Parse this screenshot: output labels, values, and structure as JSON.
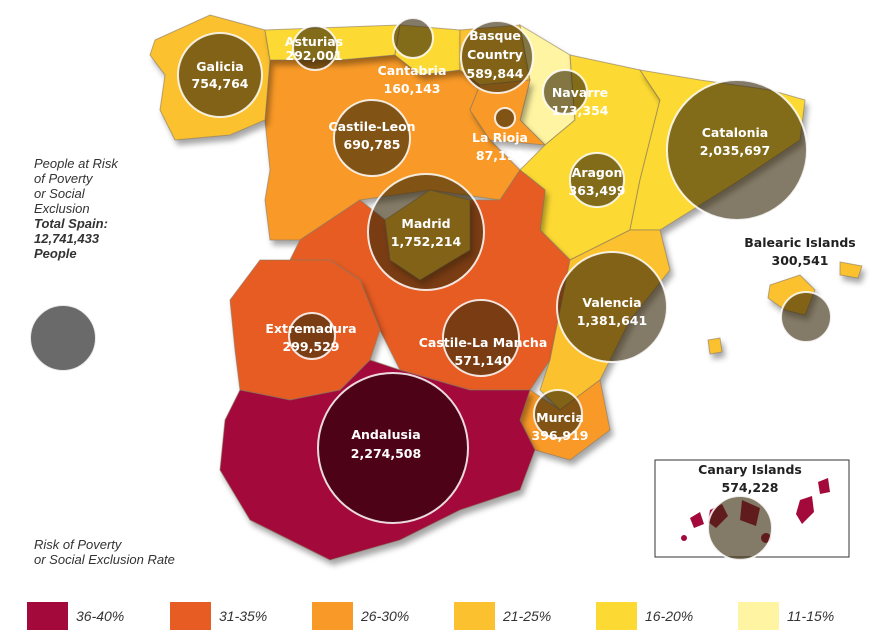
{
  "title_block": {
    "line1": "People at Risk",
    "line2": "of Poverty",
    "line3": "or Social",
    "line4": "Exclusion",
    "total_line1": "Total Spain:",
    "total_line2": "12,741,433",
    "total_line3": "People"
  },
  "legend_title": {
    "line1": "Risk of Poverty",
    "line2": "or Social Exclusion Rate"
  },
  "legend": [
    {
      "label": "36-40%",
      "color": "#a3093a"
    },
    {
      "label": "31-35%",
      "color": "#e65c23"
    },
    {
      "label": "26-30%",
      "color": "#f99a28"
    },
    {
      "label": "21-25%",
      "color": "#fbc12e"
    },
    {
      "label": "16-20%",
      "color": "#fdda33"
    },
    {
      "label": "11-15%",
      "color": "#fff4a1"
    }
  ],
  "regions": {
    "galicia": {
      "name": "Galicia",
      "people": "754,764",
      "rate": "21-25%"
    },
    "asturias": {
      "name": "Asturias",
      "people": "292,001",
      "rate": "16-20%"
    },
    "cantabria": {
      "name": "Cantabria",
      "people": "160,143",
      "rate": "16-20%"
    },
    "basque": {
      "name1": "Basque",
      "name2": "Country",
      "people": "589,844",
      "rate": "21-25%"
    },
    "navarre": {
      "name": "Navarre",
      "people": "173,354",
      "rate": "11-15%"
    },
    "la_rioja": {
      "name": "La Rioja",
      "people": "87,198",
      "rate": "26-30%"
    },
    "castile_leon": {
      "name": "Castile-Leon",
      "people": "690,785",
      "rate": "26-30%"
    },
    "aragon": {
      "name": "Aragon",
      "people": "363,499",
      "rate": "16-20%"
    },
    "catalonia": {
      "name": "Catalonia",
      "people": "2,035,697",
      "rate": "16-20%"
    },
    "madrid": {
      "name": "Madrid",
      "people": "1,752,214",
      "rate": "21-25%"
    },
    "balearic": {
      "name": "Balearic Islands",
      "people": "300,541",
      "rate": "21-25%"
    },
    "extremadura": {
      "name": "Extremadura",
      "people": "299,529",
      "rate": "31-35%"
    },
    "castile_la_mancha": {
      "name": "Castile-La Mancha",
      "people": "571,140",
      "rate": "31-35%"
    },
    "valencia": {
      "name": "Valencia",
      "people": "1,381,641",
      "rate": "21-25%"
    },
    "murcia": {
      "name": "Murcia",
      "people": "396,919",
      "rate": "26-30%"
    },
    "andalusia": {
      "name": "Andalusia",
      "people": "2,274,508",
      "rate": "36-40%"
    },
    "canary": {
      "name": "Canary Islands",
      "people": "574,228",
      "rate": "36-40%"
    }
  }
}
